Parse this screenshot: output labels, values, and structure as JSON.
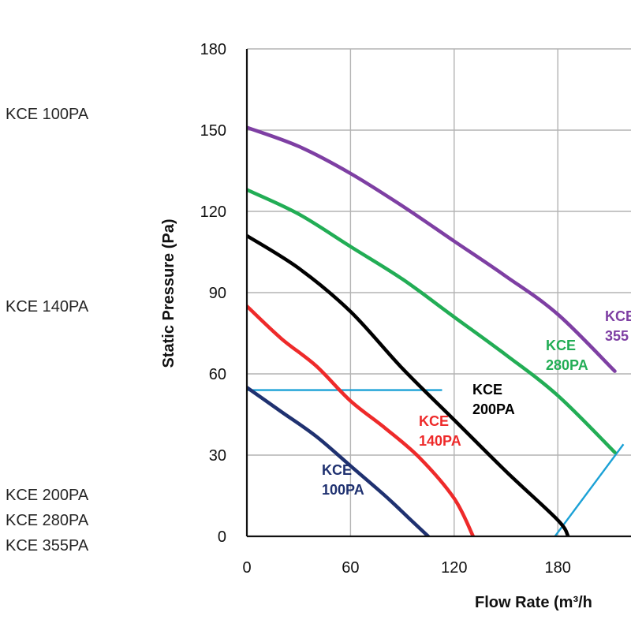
{
  "side_labels": [
    "KCE 100PA",
    "KCE 140PA",
    "KCE 200PA",
    "KCE 280PA",
    "KCE 355PA"
  ],
  "colors": {
    "kce100": "#1f3170",
    "kce140": "#ee2a2a",
    "kce200": "#000000",
    "kce280": "#22ad55",
    "kce355": "#7e3fa3",
    "guide": "#1ba1d6",
    "grid": "#b3b3b3"
  },
  "chart_data": {
    "type": "line",
    "xlabel": "Flow Rate (m³/h",
    "ylabel": "Static Pressure (Pa)",
    "xlim": [
      0,
      213
    ],
    "ylim": [
      0,
      180
    ],
    "xticks": [
      0,
      60,
      120,
      180
    ],
    "yticks": [
      0,
      30,
      60,
      90,
      120,
      150,
      180
    ],
    "grid": true,
    "series": [
      {
        "name": "KCE 100PA",
        "label_lines": [
          "KCE",
          "100PA"
        ],
        "color_key": "kce100",
        "points": [
          [
            0,
            55
          ],
          [
            20,
            46
          ],
          [
            40,
            37
          ],
          [
            60,
            26
          ],
          [
            80,
            15
          ],
          [
            95,
            6
          ],
          [
            105,
            0
          ]
        ]
      },
      {
        "name": "KCE 140PA",
        "label_lines": [
          "KCE",
          "140PA"
        ],
        "color_key": "kce140",
        "points": [
          [
            0,
            85
          ],
          [
            20,
            73
          ],
          [
            40,
            63
          ],
          [
            60,
            50
          ],
          [
            80,
            40
          ],
          [
            100,
            29
          ],
          [
            120,
            14
          ],
          [
            131,
            0
          ]
        ]
      },
      {
        "name": "KCE 200PA",
        "label_lines": [
          "KCE",
          "200PA"
        ],
        "color_key": "kce200",
        "points": [
          [
            0,
            111
          ],
          [
            30,
            99
          ],
          [
            60,
            83
          ],
          [
            90,
            62
          ],
          [
            120,
            43
          ],
          [
            150,
            24
          ],
          [
            180,
            6
          ],
          [
            186,
            0
          ]
        ]
      },
      {
        "name": "KCE 280PA",
        "label_lines": [
          "KCE",
          "280PA"
        ],
        "color_key": "kce280",
        "points": [
          [
            0,
            128
          ],
          [
            30,
            119
          ],
          [
            60,
            107
          ],
          [
            90,
            95
          ],
          [
            120,
            81
          ],
          [
            150,
            67
          ],
          [
            180,
            52
          ],
          [
            213,
            31
          ]
        ]
      },
      {
        "name": "KCE 355PA",
        "label_lines": [
          "KCE",
          "355"
        ],
        "color_key": "kce355",
        "points": [
          [
            0,
            151
          ],
          [
            30,
            144
          ],
          [
            60,
            134
          ],
          [
            90,
            122
          ],
          [
            120,
            109
          ],
          [
            150,
            96
          ],
          [
            180,
            82
          ],
          [
            213,
            61
          ]
        ]
      }
    ],
    "guide_lines": [
      [
        [
          0,
          54
        ],
        [
          113,
          54
        ]
      ],
      [
        [
          176,
          -2
        ],
        [
          218,
          34
        ]
      ]
    ]
  }
}
